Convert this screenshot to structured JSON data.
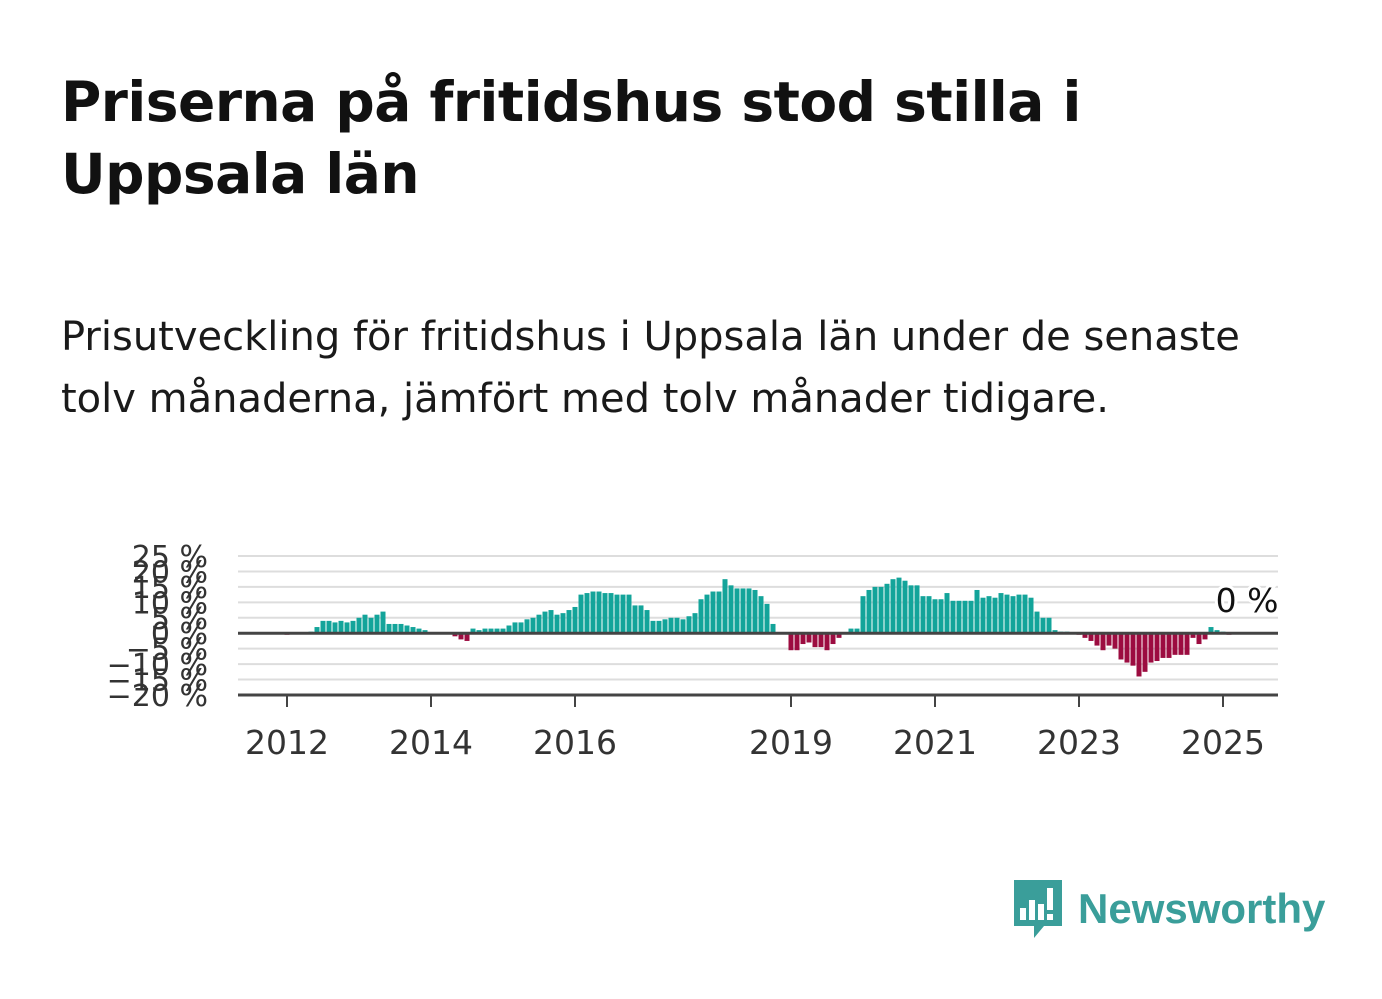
{
  "title": "Priserna på fritidshus stod stilla i Uppsala län",
  "subtitle": "Prisutveckling för fritidshus i Uppsala län under de senaste tolv månaderna, jämfört med tolv månader tidigare.",
  "brand": {
    "name": "Newsworthy",
    "icon": "bar-chart-speech-bubble-icon",
    "color": "#3a9e9a"
  },
  "colors": {
    "positive": "#13a49a",
    "negative": "#9c0c40",
    "grid": "#dddddd",
    "axis": "#444444",
    "text": "#333333"
  },
  "chart_data": {
    "type": "bar",
    "title": "",
    "xlabel": "",
    "ylabel": "",
    "ylim": [
      -20,
      25
    ],
    "grid": true,
    "y_ticks": [
      25,
      20,
      15,
      10,
      5,
      0,
      -5,
      -10,
      -15,
      -20
    ],
    "y_tick_labels": [
      "25 %",
      "20 %",
      "15 %",
      "10 %",
      "5 %",
      "0 %",
      "−5 %",
      "−10 %",
      "−15 %",
      "−20 %"
    ],
    "x_ticks": [
      "2012",
      "2014",
      "2016",
      "2019",
      "2021",
      "2023",
      "2025"
    ],
    "x_tick_positions": [
      "2012-01",
      "2014-01",
      "2016-01",
      "2019-01",
      "2021-01",
      "2023-01",
      "2025-01"
    ],
    "start_month": "2011-09",
    "end_label": "0 %",
    "values": [
      0,
      0,
      0,
      0,
      -0.5,
      0,
      0,
      0,
      0.5,
      2,
      4,
      4,
      3.5,
      4,
      3.5,
      4,
      5,
      6,
      5,
      6,
      7,
      3,
      3,
      3,
      2.5,
      2,
      1.5,
      1,
      0,
      0,
      0,
      0,
      -1,
      -2,
      -2.5,
      1.5,
      1,
      1.5,
      1.5,
      1.5,
      1.5,
      2.5,
      3.5,
      3.5,
      4.5,
      5,
      6,
      7,
      7.5,
      6,
      6.5,
      7.5,
      8.5,
      12.5,
      13,
      13.5,
      13.5,
      13,
      13,
      12.5,
      12.5,
      12.5,
      9,
      9,
      7.5,
      4,
      4,
      4.5,
      5,
      5,
      4.5,
      5.5,
      6.5,
      11,
      12.5,
      13.5,
      13.5,
      17.5,
      15.5,
      14.5,
      14.5,
      14.5,
      14,
      12,
      9.5,
      3,
      0,
      0,
      -5.5,
      -5.5,
      -3.5,
      -3,
      -4.5,
      -4.5,
      -5.5,
      -3.5,
      -1.5,
      0,
      1.5,
      1.5,
      12,
      14,
      15,
      15,
      16,
      17.5,
      18,
      17,
      15.5,
      15.5,
      12,
      12,
      11,
      11,
      13,
      10.5,
      10.5,
      10.5,
      10.5,
      14,
      11.5,
      12,
      11.5,
      13,
      12.5,
      12,
      12.5,
      12.5,
      11.5,
      7,
      5,
      5,
      1,
      0.5,
      0.5,
      0,
      -0.5,
      -1.5,
      -2.5,
      -4,
      -5.5,
      -4,
      -5,
      -8.5,
      -9.5,
      -10.5,
      -14,
      -12.5,
      -9.5,
      -9,
      -8,
      -8,
      -7,
      -7,
      -7,
      -1.5,
      -3.5,
      -2,
      2,
      1,
      0.5,
      -0.5,
      0
    ]
  }
}
